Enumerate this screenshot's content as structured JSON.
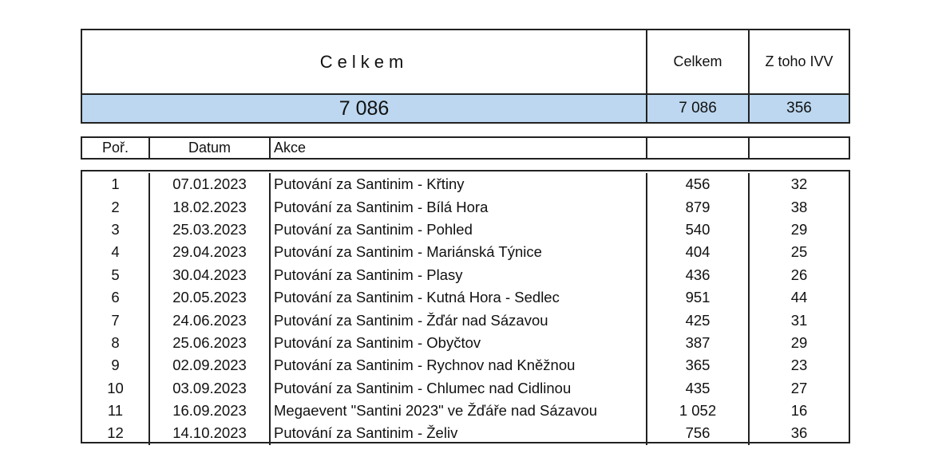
{
  "summary": {
    "title": "Celkem",
    "col_celkem": "Celkem",
    "col_ivv": "Z toho IVV",
    "total_main": "7 086",
    "total_celkem": "7 086",
    "total_ivv": "356"
  },
  "columns": {
    "por": "Poř.",
    "datum": "Datum",
    "akce": "Akce",
    "celkem": "",
    "ivv": ""
  },
  "rows": [
    {
      "por": "1",
      "datum": "07.01.2023",
      "akce": "Putování za Santinim - Křtiny",
      "celkem": "456",
      "ivv": "32"
    },
    {
      "por": "2",
      "datum": "18.02.2023",
      "akce": "Putování za Santinim - Bílá Hora",
      "celkem": "879",
      "ivv": "38"
    },
    {
      "por": "3",
      "datum": "25.03.2023",
      "akce": "Putování za Santinim - Pohled",
      "celkem": "540",
      "ivv": "29"
    },
    {
      "por": "4",
      "datum": "29.04.2023",
      "akce": "Putování za Santinim - Mariánská Týnice",
      "celkem": "404",
      "ivv": "25"
    },
    {
      "por": "5",
      "datum": "30.04.2023",
      "akce": "Putování za Santinim - Plasy",
      "celkem": "436",
      "ivv": "26"
    },
    {
      "por": "6",
      "datum": "20.05.2023",
      "akce": "Putování za Santinim - Kutná Hora - Sedlec",
      "celkem": "951",
      "ivv": "44"
    },
    {
      "por": "7",
      "datum": "24.06.2023",
      "akce": "Putování za Santinim - Žďár nad Sázavou",
      "celkem": "425",
      "ivv": "31"
    },
    {
      "por": "8",
      "datum": "25.06.2023",
      "akce": "Putování za Santinim - Obyčtov",
      "celkem": "387",
      "ivv": "29"
    },
    {
      "por": "9",
      "datum": "02.09.2023",
      "akce": "Putování za Santinim - Rychnov nad Kněžnou",
      "celkem": "365",
      "ivv": "23"
    },
    {
      "por": "10",
      "datum": "03.09.2023",
      "akce": "Putování za Santinim - Chlumec nad Cidlinou",
      "celkem": "435",
      "ivv": "27"
    },
    {
      "por": "11",
      "datum": "16.09.2023",
      "akce": "Megaevent \"Santini 2023\" ve Žďáře nad Sázavou",
      "celkem": "1 052",
      "ivv": "16"
    },
    {
      "por": "12",
      "datum": "14.10.2023",
      "akce": "Putování za Santinim - Želiv",
      "celkem": "756",
      "ivv": "36"
    }
  ]
}
